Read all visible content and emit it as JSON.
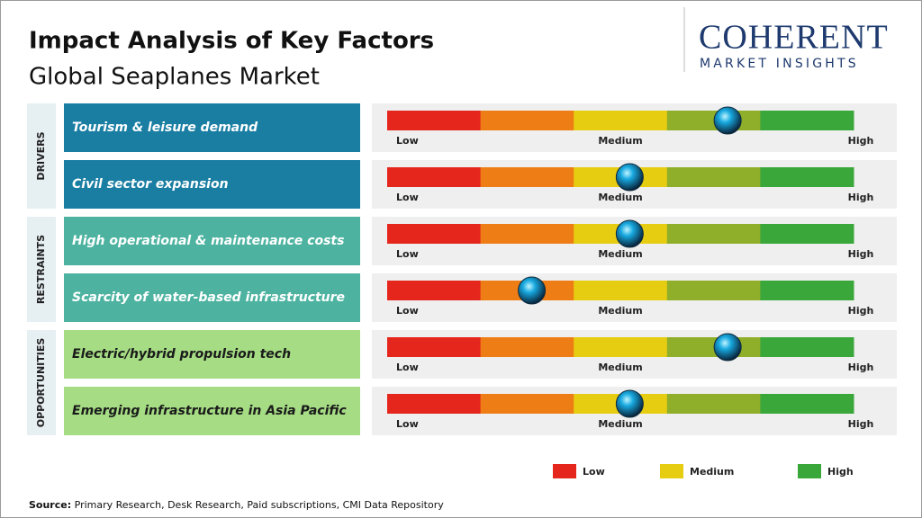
{
  "header": {
    "title": "Impact Analysis of Key Factors",
    "subtitle": "Global Seaplanes Market"
  },
  "logo": {
    "name": "COHERENT",
    "tagline": "MARKET INSIGHTS"
  },
  "scale": {
    "range": [
      0,
      100
    ],
    "labels": [
      "Low",
      "Medium",
      "High"
    ],
    "colors": [
      "#e5261d",
      "#ef7d15",
      "#e6cd12",
      "#8fae2a",
      "#3aa73b"
    ]
  },
  "groups": [
    {
      "label": "DRIVERS",
      "color": "#1a7ea3",
      "text_color": "#ffffff",
      "factors": [
        {
          "label": "Tourism & leisure demand",
          "impact": 73
        },
        {
          "label": "Civil sector expansion",
          "impact": 52
        }
      ]
    },
    {
      "label": "RESTRAINTS",
      "color": "#4db3a0",
      "text_color": "#ffffff",
      "factors": [
        {
          "label": "High operational & maintenance costs",
          "impact": 52
        },
        {
          "label": "Scarcity of water-based infrastructure",
          "impact": 31
        }
      ]
    },
    {
      "label": "OPPORTUNITIES",
      "color": "#a5dc84",
      "text_color": "#1a1a1a",
      "factors": [
        {
          "label": "Electric/hybrid propulsion tech",
          "impact": 73
        },
        {
          "label": "Emerging infrastructure in Asia Pacific",
          "impact": 52
        }
      ]
    }
  ],
  "legend": [
    {
      "label": "Low",
      "color": "#e5261d"
    },
    {
      "label": "Medium",
      "color": "#e6cd12"
    },
    {
      "label": "High",
      "color": "#3aa73b"
    }
  ],
  "source": {
    "label": "Source:",
    "text": "Primary Research, Desk Research, Paid subscriptions, CMI Data Repository"
  }
}
